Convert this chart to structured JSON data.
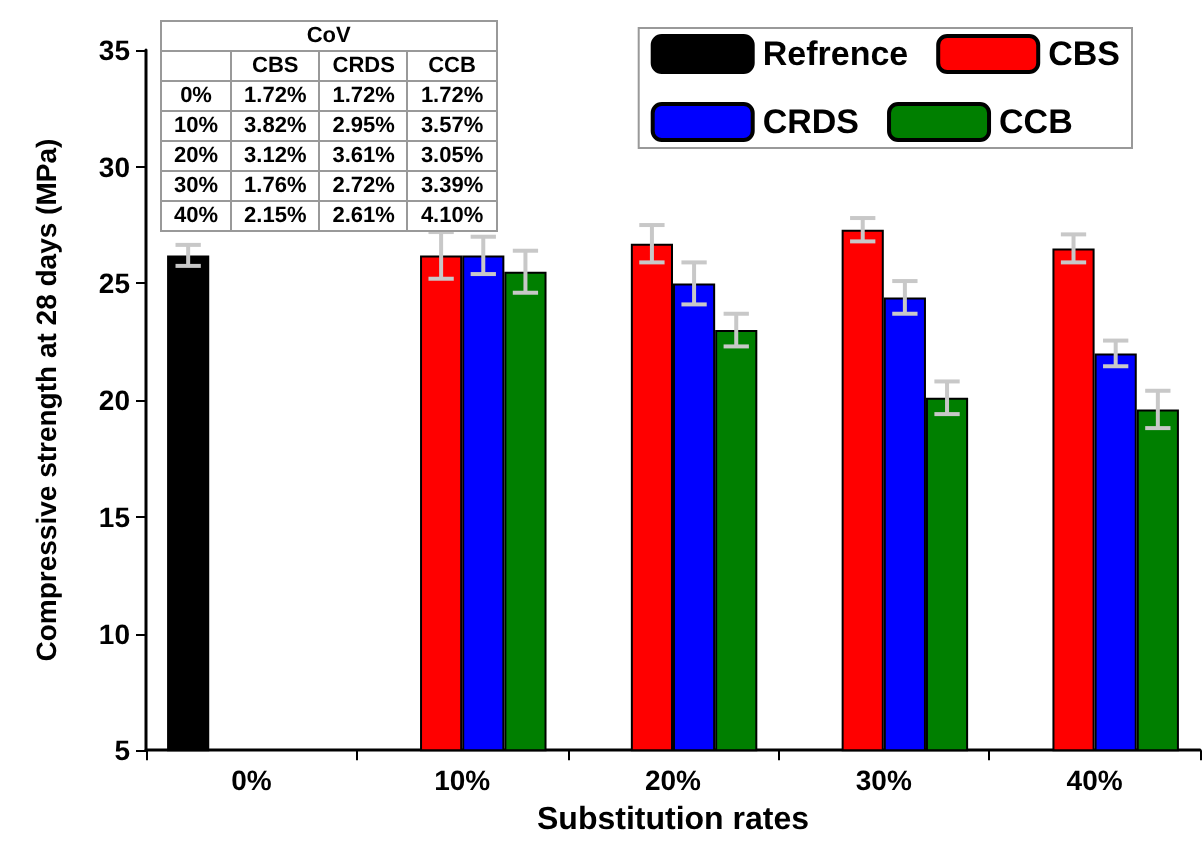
{
  "chart_data": {
    "type": "bar",
    "xlabel": "Substitution rates",
    "ylabel": "Compressive strength at 28 days (MPa)",
    "categories": [
      "0%",
      "10%",
      "20%",
      "30%",
      "40%"
    ],
    "series": [
      {
        "name": "Refrence",
        "color": "#000000",
        "values": [
          26.2,
          null,
          null,
          null,
          null
        ],
        "errors": [
          0.45,
          null,
          null,
          null,
          null
        ]
      },
      {
        "name": "CBS",
        "color": "#ff0000",
        "values": [
          null,
          26.2,
          26.7,
          27.3,
          26.5
        ],
        "errors": [
          null,
          1.0,
          0.8,
          0.5,
          0.6
        ]
      },
      {
        "name": "CRDS",
        "color": "#0000ff",
        "values": [
          null,
          26.2,
          25.0,
          24.4,
          22.0
        ],
        "errors": [
          null,
          0.8,
          0.9,
          0.7,
          0.55
        ]
      },
      {
        "name": "CCB",
        "color": "#007f00",
        "values": [
          null,
          25.5,
          23.0,
          20.1,
          19.6
        ],
        "errors": [
          null,
          0.9,
          0.7,
          0.7,
          0.8
        ]
      }
    ],
    "ylim": [
      5,
      35
    ],
    "yticks": [
      5,
      10,
      15,
      20,
      25,
      30,
      35
    ],
    "grid": false,
    "legend": "top right",
    "annotations": [
      "CoV",
      "CBS",
      "CRDS",
      "CCB",
      "0%",
      "1.72%",
      "1.72%",
      "1.72%",
      "10%",
      "3.82%",
      "2.95%",
      "3.57%",
      "20%",
      "3.12%",
      "3.61%",
      "3.05%",
      "30%",
      "1.76%",
      "2.72%",
      "3.39%",
      "40%",
      "2.15%",
      "2.61%",
      "4.10%"
    ]
  }
}
